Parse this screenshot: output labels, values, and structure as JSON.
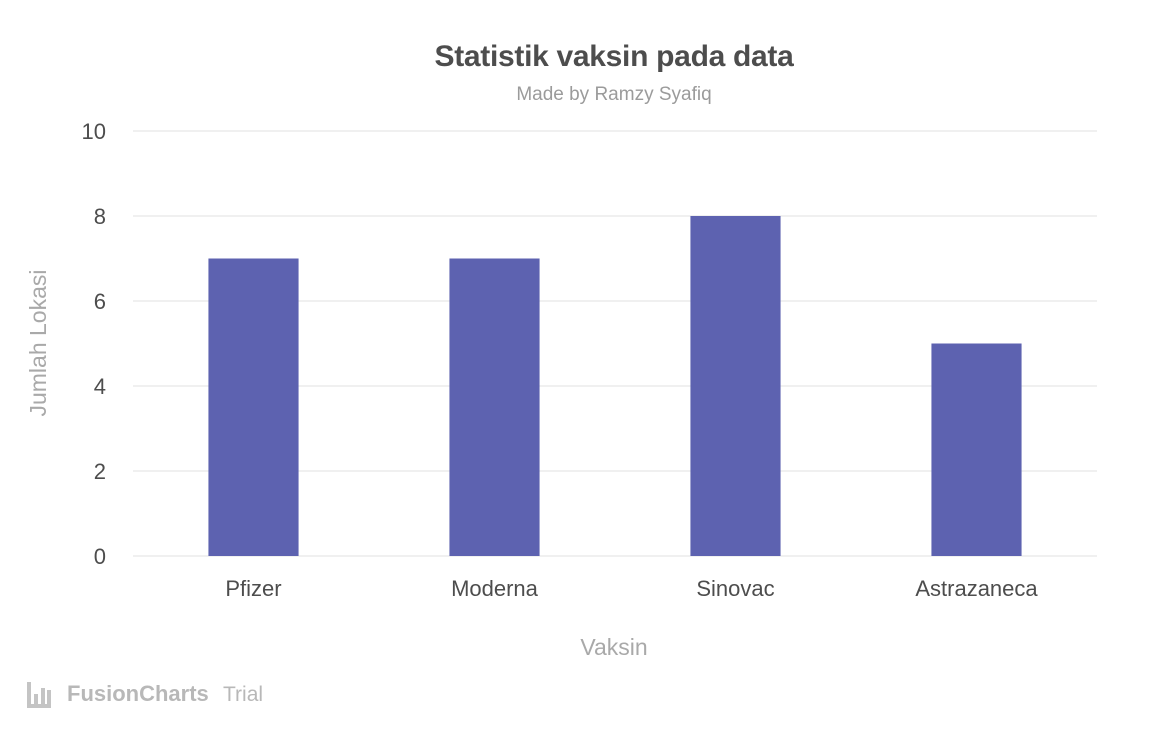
{
  "chart_data": {
    "type": "bar",
    "title": "Statistik vaksin pada data",
    "subtitle": "Made by Ramzy Syafiq",
    "xlabel": "Vaksin",
    "ylabel": "Jumlah Lokasi",
    "categories": [
      "Pfizer",
      "Moderna",
      "Sinovac",
      "Astrazaneca"
    ],
    "values": [
      7,
      7,
      8,
      5
    ],
    "ylim": [
      0,
      10
    ],
    "yticks": [
      "0",
      "2",
      "4",
      "6",
      "8",
      "10"
    ],
    "grid": true,
    "bar_color": "#5d62b0"
  },
  "watermark": {
    "brand": "FusionCharts",
    "suffix": "Trial",
    "icon": "fusioncharts-logo-icon"
  }
}
